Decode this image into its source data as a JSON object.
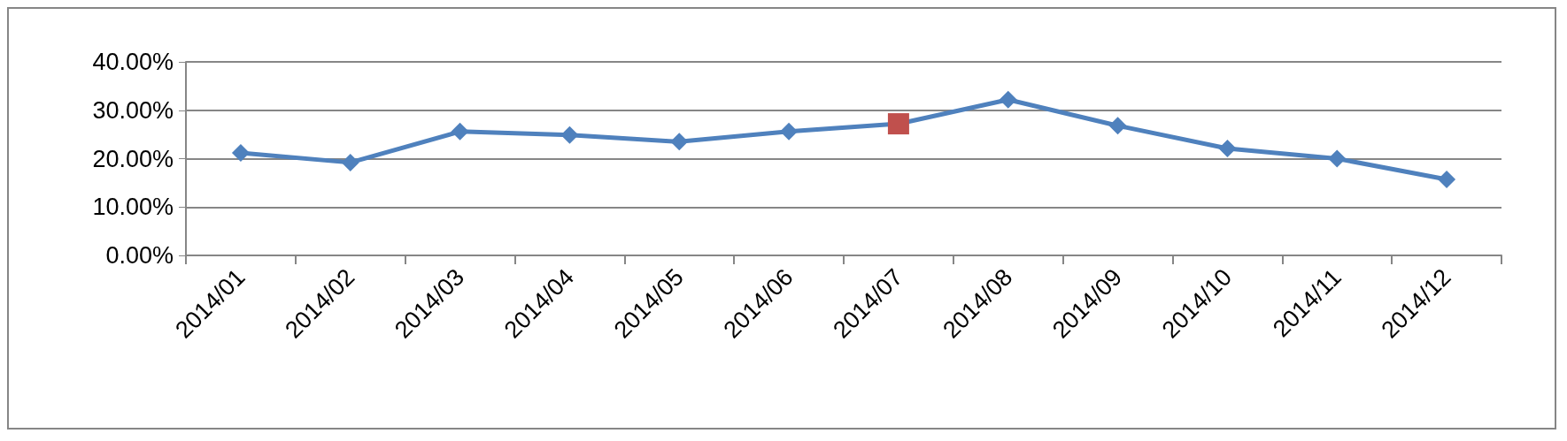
{
  "chart_data": {
    "type": "line",
    "categories": [
      "2014/01",
      "2014/02",
      "2014/03",
      "2014/04",
      "2014/05",
      "2014/06",
      "2014/07",
      "2014/08",
      "2014/09",
      "2014/10",
      "2014/11",
      "2014/12"
    ],
    "series": [
      {
        "color": "#4f81bd",
        "values": [
          21.2,
          19.2,
          25.6,
          24.9,
          23.5,
          25.6,
          27.2,
          32.2,
          26.8,
          22.1,
          20.0,
          15.7
        ],
        "colors": [
          "#4f81bd",
          "#4f81bd",
          "#4f81bd",
          "#4f81bd",
          "#4f81bd",
          "#4f81bd",
          "#c0504d",
          "#4f81bd",
          "#4f81bd",
          "#4f81bd",
          "#4f81bd",
          "#4f81bd"
        ]
      }
    ],
    "ylim": [
      0,
      40
    ],
    "yticks": [
      {
        "value": 0,
        "label": "0.00%"
      },
      {
        "value": 10,
        "label": "10.00%"
      },
      {
        "value": 20,
        "label": "20.00%"
      },
      {
        "value": 30,
        "label": "30.00%"
      },
      {
        "value": 40,
        "label": "40.00%"
      }
    ],
    "grid": "y",
    "marker": "diamond",
    "line_style": "solid"
  }
}
